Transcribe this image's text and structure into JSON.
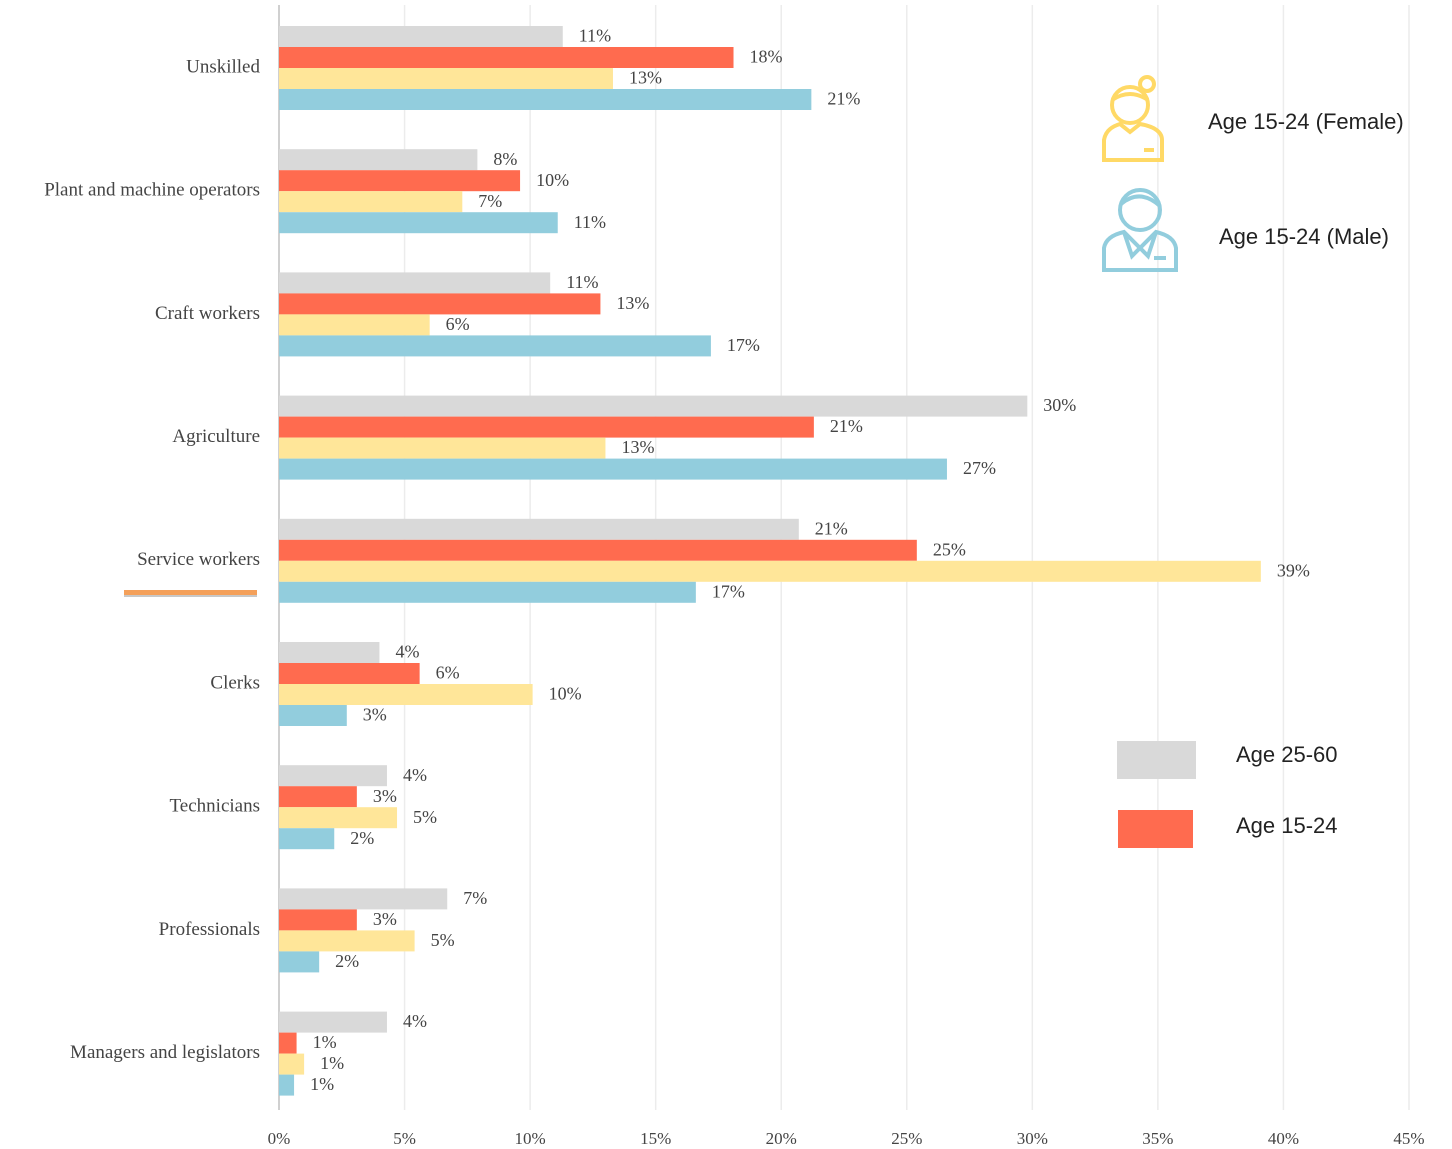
{
  "chart_data": {
    "type": "bar",
    "orientation": "horizontal",
    "categories": [
      "Unskilled",
      "Plant and machine operators",
      "Craft workers",
      "Agriculture",
      "Service workers",
      "Clerks",
      "Technicians",
      "Professionals",
      "Managers and legislators"
    ],
    "series": [
      {
        "name": "Age 25-60",
        "color": "#d9d9d9",
        "values": [
          11.3,
          7.9,
          10.8,
          29.8,
          20.7,
          4.0,
          4.3,
          6.7,
          4.3
        ],
        "value_labels": [
          "11%",
          "8%",
          "11%",
          "30%",
          "21%",
          "4%",
          "4%",
          "7%",
          "4%"
        ]
      },
      {
        "name": "Age 15-24",
        "color": "#ff6b4f",
        "values": [
          18.1,
          9.6,
          12.8,
          21.3,
          25.4,
          5.6,
          3.1,
          3.1,
          0.7
        ],
        "value_labels": [
          "18%",
          "10%",
          "13%",
          "21%",
          "25%",
          "6%",
          "3%",
          "3%",
          "1%"
        ]
      },
      {
        "name": "Age 15-24 (Female)",
        "color": "#ffe699",
        "values": [
          13.3,
          7.3,
          6.0,
          13.0,
          39.1,
          10.1,
          4.7,
          5.4,
          1.0
        ],
        "value_labels": [
          "13%",
          "7%",
          "6%",
          "13%",
          "39%",
          "10%",
          "5%",
          "5%",
          "1%"
        ]
      },
      {
        "name": "Age 15-24 (Male)",
        "color": "#92cddd",
        "values": [
          21.2,
          11.1,
          17.2,
          26.6,
          16.6,
          2.7,
          2.2,
          1.6,
          0.6
        ],
        "value_labels": [
          "21%",
          "11%",
          "17%",
          "27%",
          "17%",
          "3%",
          "2%",
          "2%",
          "1%"
        ]
      }
    ],
    "xlim": [
      0,
      45
    ],
    "xticks": [
      {
        "value": 0,
        "label": "0%"
      },
      {
        "value": 5,
        "label": "5%"
      },
      {
        "value": 10,
        "label": "10%"
      },
      {
        "value": 15,
        "label": "15%"
      },
      {
        "value": 20,
        "label": "20%"
      },
      {
        "value": 25,
        "label": "25%"
      },
      {
        "value": 30,
        "label": "30%"
      },
      {
        "value": 35,
        "label": "35%"
      },
      {
        "value": 40,
        "label": "40%"
      },
      {
        "value": 45,
        "label": "45%"
      }
    ],
    "grid": true
  }
}
